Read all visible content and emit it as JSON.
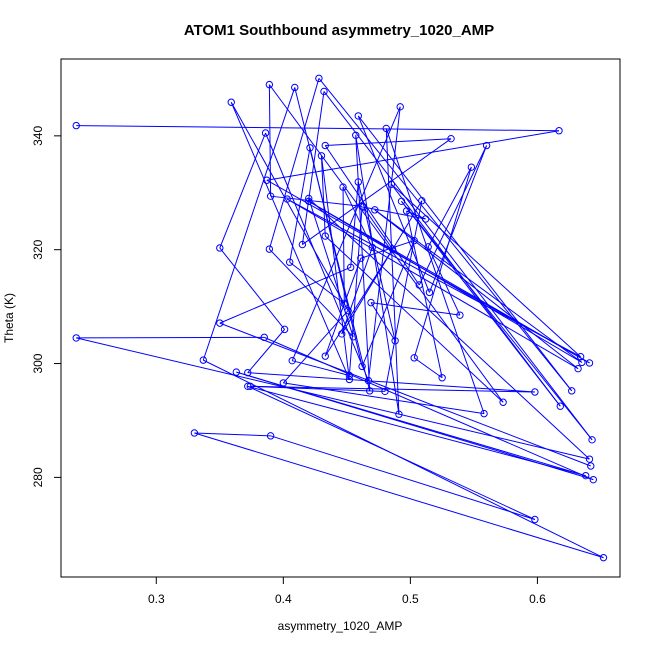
{
  "chart_data": {
    "type": "line",
    "title": "ATOM1 Southbound asymmetry_1020_AMP",
    "xlabel": "asymmetry_1020_AMP",
    "ylabel": "Theta (K)",
    "xlim": [
      0.225,
      0.665
    ],
    "ylim": [
      262.5,
      353.5
    ],
    "xticks": [
      0.3,
      0.4,
      0.5,
      0.6
    ],
    "yticks": [
      280,
      300,
      320,
      340
    ],
    "grid": false,
    "line_color": "#0000ff",
    "marker": "open-circle",
    "series": [
      {
        "points": [
          [
            0.237,
            341.8
          ],
          [
            0.617,
            340.9
          ],
          [
            0.387,
            332.2
          ],
          [
            0.641,
            300.1
          ],
          [
            0.42,
            328.5
          ],
          [
            0.635,
            300.2
          ],
          [
            0.472,
            327.0
          ],
          [
            0.632,
            299.1
          ],
          [
            0.403,
            328.9
          ],
          [
            0.634,
            301.2
          ],
          [
            0.485,
            331.5
          ],
          [
            0.618,
            292.5
          ],
          [
            0.493,
            328.5
          ],
          [
            0.643,
            286.6
          ],
          [
            0.432,
            347.8
          ],
          [
            0.415,
            320.9
          ],
          [
            0.532,
            339.5
          ],
          [
            0.433,
            338.3
          ],
          [
            0.507,
            313.8
          ],
          [
            0.56,
            338.3
          ],
          [
            0.515,
            312.5
          ],
          [
            0.459,
            343.5
          ],
          [
            0.627,
            295.2
          ],
          [
            0.428,
            350.1
          ],
          [
            0.389,
            320.1
          ],
          [
            0.455,
            304.7
          ],
          [
            0.42,
            329.0
          ],
          [
            0.641,
            283.2
          ],
          [
            0.237,
            304.5
          ],
          [
            0.385,
            304.6
          ],
          [
            0.644,
            279.6
          ],
          [
            0.363,
            298.5
          ],
          [
            0.638,
            280.3
          ],
          [
            0.372,
            296.0
          ],
          [
            0.598,
            272.6
          ],
          [
            0.39,
            287.3
          ],
          [
            0.33,
            287.8
          ],
          [
            0.652,
            265.9
          ],
          [
            0.337,
            300.6
          ],
          [
            0.409,
            348.5
          ],
          [
            0.468,
            295.2
          ],
          [
            0.457,
            340.1
          ],
          [
            0.491,
            291.1
          ],
          [
            0.481,
            341.3
          ],
          [
            0.558,
            291.2
          ],
          [
            0.4,
            296.6
          ],
          [
            0.451,
            309.3
          ],
          [
            0.359,
            345.9
          ],
          [
            0.452,
            297.2
          ],
          [
            0.43,
            336.5
          ],
          [
            0.433,
            322.4
          ],
          [
            0.573,
            293.2
          ],
          [
            0.389,
            349.0
          ],
          [
            0.39,
            329.4
          ],
          [
            0.462,
            327.6
          ],
          [
            0.452,
            297.9
          ],
          [
            0.407,
            300.5
          ],
          [
            0.492,
            345.1
          ],
          [
            0.467,
            297.0
          ],
          [
            0.386,
            340.5
          ],
          [
            0.35,
            320.3
          ],
          [
            0.401,
            306.0
          ],
          [
            0.372,
            298.4
          ],
          [
            0.598,
            295.0
          ],
          [
            0.374,
            296.0
          ],
          [
            0.48,
            295.1
          ],
          [
            0.509,
            328.6
          ],
          [
            0.446,
            305.2
          ],
          [
            0.47,
            320.4
          ],
          [
            0.447,
            331.0
          ],
          [
            0.448,
            310.5
          ],
          [
            0.405,
            317.8
          ],
          [
            0.421,
            337.9
          ],
          [
            0.462,
            299.5
          ],
          [
            0.503,
            321.6
          ],
          [
            0.461,
            318.5
          ],
          [
            0.433,
            301.3
          ],
          [
            0.486,
            320.1
          ],
          [
            0.463,
            327.5
          ],
          [
            0.512,
            325.4
          ],
          [
            0.497,
            326.8
          ],
          [
            0.525,
            297.5
          ],
          [
            0.503,
            301.0
          ],
          [
            0.548,
            334.5
          ],
          [
            0.514,
            320.5
          ],
          [
            0.539,
            308.5
          ],
          [
            0.469,
            310.7
          ],
          [
            0.488,
            304.0
          ],
          [
            0.459,
            331.9
          ],
          [
            0.453,
            316.9
          ],
          [
            0.35,
            307.1
          ],
          [
            0.642,
            282.0
          ]
        ]
      }
    ]
  }
}
